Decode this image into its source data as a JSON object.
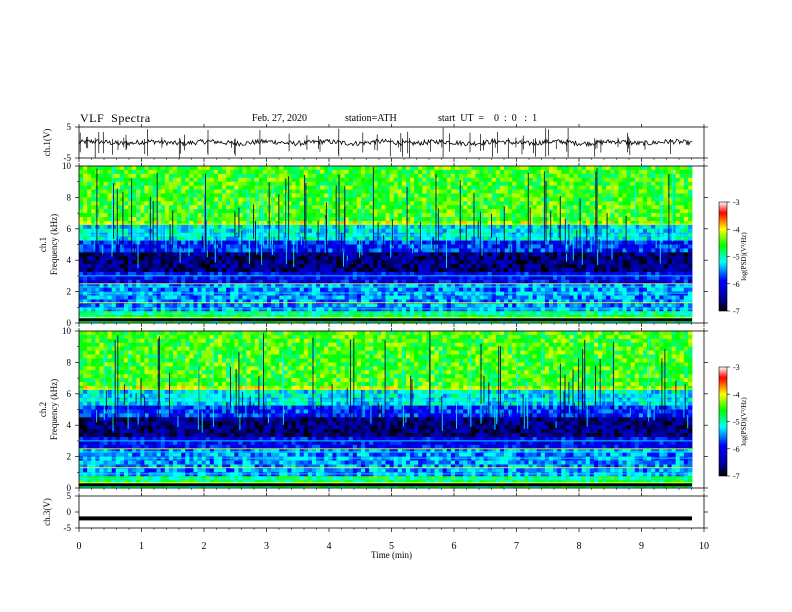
{
  "header": {
    "title": "VLF  Spectra",
    "date": "Feb. 27, 2020",
    "station": "station=ATH",
    "start": "start  UT  =    0  :  0   :  1"
  },
  "chart_data": [
    {
      "type": "line",
      "panel": "ch1-waveform",
      "ylabel": "ch.1(V)",
      "ylim": [
        -5,
        5
      ],
      "yticks": [
        5,
        -5
      ],
      "xlim": [
        0,
        10
      ],
      "description_series": "noisy waveform centred near 0 V with spikes",
      "baseline_v": 0
    },
    {
      "type": "heatmap",
      "panel": "ch1-spectrogram",
      "ylabel": "ch.1\nFrequency  (kHz)",
      "ylim": [
        0,
        10
      ],
      "yticks": [
        0,
        2,
        4,
        6,
        8,
        10
      ],
      "xlim": [
        0,
        10
      ],
      "colorbar": {
        "label": "log(PSD)(V²/Hz)",
        "range": [
          -7,
          -3
        ],
        "ticks": [
          -3,
          -4,
          -5,
          -6,
          -7
        ]
      }
    },
    {
      "type": "heatmap",
      "panel": "ch2-spectrogram",
      "ylabel": "ch.2\nFrequency  (kHz)",
      "ylim": [
        0,
        10
      ],
      "yticks": [
        0,
        2,
        4,
        6,
        8,
        10
      ],
      "xlim": [
        0,
        10
      ],
      "colorbar": {
        "label": "log(PSD)(V²/Hz)",
        "range": [
          -7,
          -3
        ],
        "ticks": [
          -3,
          -4,
          -5,
          -6,
          -7
        ]
      }
    },
    {
      "type": "line",
      "panel": "ch3-waveform",
      "ylabel": "ch.3(V)",
      "ylim": [
        -5,
        5
      ],
      "yticks": [
        5,
        0,
        -5
      ],
      "xlim": [
        0,
        10
      ],
      "baseline_v": -2
    }
  ],
  "xaxis": {
    "label": "Time  (min)",
    "ticks": [
      0,
      1,
      2,
      3,
      4,
      5,
      6,
      7,
      8,
      9,
      10
    ]
  },
  "colors": {
    "waveform": "#000000",
    "colormap": [
      "#000080",
      "#0000ff",
      "#00ffff",
      "#00ff00",
      "#ffff00",
      "#ff0000",
      "#ffffff"
    ]
  }
}
